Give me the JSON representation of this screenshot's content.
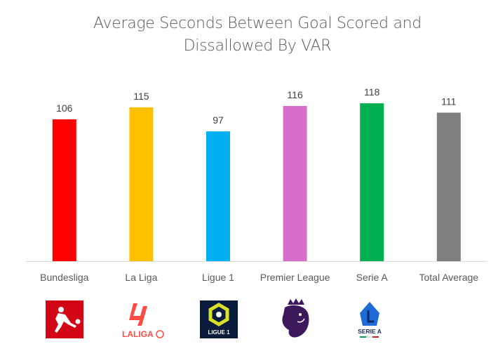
{
  "chart_data": {
    "type": "bar",
    "title": "Average Seconds Between Goal Scored and Dissallowed By VAR",
    "title_lines": [
      "Average Seconds Between Goal Scored and",
      "Dissallowed By VAR"
    ],
    "categories": [
      "Bundesliga",
      "La Liga",
      "Ligue 1",
      "Premier League",
      "Serie A",
      "Total  Average"
    ],
    "values": [
      106,
      115,
      97,
      116,
      118,
      111
    ],
    "colors": [
      "#ff0000",
      "#ffc000",
      "#00b0f0",
      "#d86ecc",
      "#00b050",
      "#7f7f7f"
    ],
    "ylim": [
      0,
      120
    ],
    "grid": false,
    "legend": "none",
    "xlabel": "",
    "ylabel": ""
  },
  "logos": [
    {
      "league": "Bundesliga",
      "icon": "bundesliga-logo",
      "color": "#d20515"
    },
    {
      "league": "La Liga",
      "icon": "laliga-logo",
      "text": "LALIGA",
      "color": "#ff4b44"
    },
    {
      "league": "Ligue 1",
      "icon": "ligue1-logo",
      "text": "LIGUE 1",
      "color": "#091c3e"
    },
    {
      "league": "Premier League",
      "icon": "premier-league-lion-logo",
      "color": "#3d195b"
    },
    {
      "league": "Serie A",
      "icon": "serie-a-logo",
      "text": "SERIE A",
      "color": "#1e6ad6"
    }
  ]
}
